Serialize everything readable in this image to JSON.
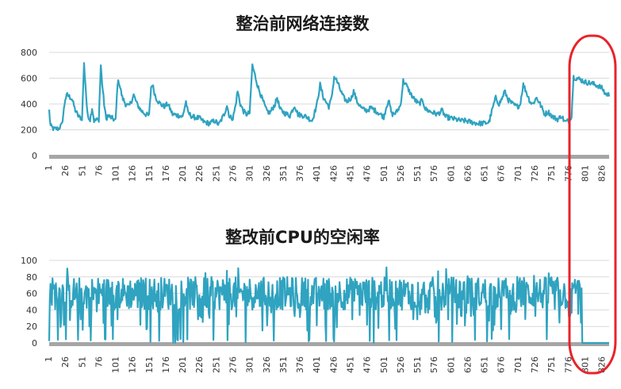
{
  "colors": {
    "line": "#2fa3c0",
    "axis": "#a6a6a6",
    "grid": "#d9d9d9",
    "highlight": "#e8232a"
  },
  "x_ticks": [
    "1",
    "26",
    "51",
    "76",
    "101",
    "126",
    "151",
    "176",
    "201",
    "226",
    "251",
    "276",
    "301",
    "326",
    "351",
    "376",
    "401",
    "426",
    "451",
    "476",
    "501",
    "526",
    "551",
    "576",
    "601",
    "626",
    "651",
    "676",
    "701",
    "726",
    "751",
    "776",
    "801",
    "826"
  ],
  "chart_data": [
    {
      "type": "line",
      "title": "整治前网络连接数",
      "xlabel": "",
      "ylabel": "",
      "n_points": 836,
      "ylim": [
        0,
        800
      ],
      "yticks": [
        "0",
        "200",
        "400",
        "600",
        "800"
      ],
      "grid": true,
      "series": [
        {
          "key_points": [
            [
              1,
              350
            ],
            [
              3,
              230
            ],
            [
              8,
              205
            ],
            [
              15,
              210
            ],
            [
              20,
              240
            ],
            [
              25,
              440
            ],
            [
              28,
              470
            ],
            [
              35,
              440
            ],
            [
              40,
              350
            ],
            [
              45,
              300
            ],
            [
              50,
              290
            ],
            [
              53,
              710
            ],
            [
              55,
              560
            ],
            [
              58,
              320
            ],
            [
              62,
              280
            ],
            [
              65,
              370
            ],
            [
              68,
              270
            ],
            [
              75,
              280
            ],
            [
              78,
              700
            ],
            [
              80,
              560
            ],
            [
              83,
              400
            ],
            [
              86,
              280
            ],
            [
              88,
              310
            ],
            [
              95,
              290
            ],
            [
              100,
              270
            ],
            [
              103,
              560
            ],
            [
              105,
              575
            ],
            [
              110,
              450
            ],
            [
              115,
              400
            ],
            [
              120,
              380
            ],
            [
              125,
              440
            ],
            [
              127,
              470
            ],
            [
              132,
              400
            ],
            [
              138,
              350
            ],
            [
              145,
              320
            ],
            [
              150,
              310
            ],
            [
              153,
              530
            ],
            [
              155,
              550
            ],
            [
              160,
              450
            ],
            [
              165,
              410
            ],
            [
              172,
              380
            ],
            [
              178,
              400
            ],
            [
              185,
              320
            ],
            [
              195,
              310
            ],
            [
              200,
              300
            ],
            [
              205,
              420
            ],
            [
              208,
              330
            ],
            [
              215,
              300
            ],
            [
              225,
              290
            ],
            [
              232,
              260
            ],
            [
              240,
              250
            ],
            [
              248,
              270
            ],
            [
              254,
              240
            ],
            [
              262,
              320
            ],
            [
              266,
              390
            ],
            [
              270,
              300
            ],
            [
              275,
              290
            ],
            [
              279,
              390
            ],
            [
              282,
              500
            ],
            [
              286,
              400
            ],
            [
              290,
              350
            ],
            [
              295,
              320
            ],
            [
              300,
              330
            ],
            [
              304,
              700
            ],
            [
              307,
              640
            ],
            [
              312,
              540
            ],
            [
              318,
              450
            ],
            [
              325,
              350
            ],
            [
              330,
              330
            ],
            [
              338,
              400
            ],
            [
              341,
              450
            ],
            [
              345,
              360
            ],
            [
              352,
              330
            ],
            [
              360,
              310
            ],
            [
              367,
              390
            ],
            [
              372,
              320
            ],
            [
              380,
              310
            ],
            [
              385,
              300
            ],
            [
              393,
              270
            ],
            [
              400,
              390
            ],
            [
              405,
              550
            ],
            [
              410,
              450
            ],
            [
              418,
              380
            ],
            [
              422,
              440
            ],
            [
              426,
              610
            ],
            [
              430,
              580
            ],
            [
              435,
              510
            ],
            [
              440,
              450
            ],
            [
              445,
              420
            ],
            [
              452,
              450
            ],
            [
              455,
              500
            ],
            [
              460,
              420
            ],
            [
              468,
              360
            ],
            [
              475,
              350
            ],
            [
              481,
              370
            ],
            [
              490,
              340
            ],
            [
              495,
              320
            ],
            [
              500,
              300
            ],
            [
              504,
              380
            ],
            [
              507,
              430
            ],
            [
              512,
              320
            ],
            [
              518,
              330
            ],
            [
              525,
              390
            ],
            [
              529,
              580
            ],
            [
              533,
              550
            ],
            [
              540,
              480
            ],
            [
              545,
              440
            ],
            [
              552,
              400
            ],
            [
              558,
              430
            ],
            [
              562,
              360
            ],
            [
              570,
              340
            ],
            [
              580,
              320
            ],
            [
              587,
              350
            ],
            [
              592,
              300
            ],
            [
              600,
              290
            ],
            [
              608,
              280
            ],
            [
              615,
              270
            ],
            [
              622,
              270
            ],
            [
              630,
              260
            ],
            [
              640,
              250
            ],
            [
              650,
              250
            ],
            [
              657,
              260
            ],
            [
              663,
              380
            ],
            [
              667,
              450
            ],
            [
              672,
              400
            ],
            [
              677,
              450
            ],
            [
              680,
              500
            ],
            [
              686,
              430
            ],
            [
              692,
              400
            ],
            [
              698,
              380
            ],
            [
              703,
              390
            ],
            [
              708,
              550
            ],
            [
              712,
              500
            ],
            [
              718,
              420
            ],
            [
              722,
              400
            ],
            [
              728,
              450
            ],
            [
              733,
              400
            ],
            [
              740,
              320
            ],
            [
              745,
              340
            ],
            [
              752,
              300
            ],
            [
              760,
              280
            ],
            [
              765,
              310
            ],
            [
              770,
              260
            ],
            [
              776,
              270
            ],
            [
              780,
              310
            ],
            [
              783,
              610
            ],
            [
              787,
              600
            ],
            [
              793,
              590
            ],
            [
              800,
              570
            ],
            [
              810,
              560
            ],
            [
              820,
              540
            ],
            [
              826,
              520
            ],
            [
              830,
              480
            ],
            [
              836,
              470
            ]
          ]
        }
      ]
    },
    {
      "type": "line",
      "title": "整改前CPU的空闲率",
      "xlabel": "",
      "ylabel": "",
      "n_points": 836,
      "ylim": [
        0,
        100
      ],
      "yticks": [
        "0",
        "20",
        "40",
        "60",
        "80",
        "100"
      ],
      "grid": true,
      "series": [
        {
          "segments": [
            {
              "range": [
                1,
                782
              ],
              "low": 40,
              "high": 80,
              "spike_max": 93,
              "dip_to": 0,
              "pattern": "noisy"
            },
            {
              "range": [
                783,
                795
              ],
              "low": 60,
              "high": 78,
              "pattern": "noisy"
            },
            {
              "range": [
                796,
                836
              ],
              "value": 0,
              "pattern": "flat"
            }
          ]
        }
      ]
    }
  ]
}
